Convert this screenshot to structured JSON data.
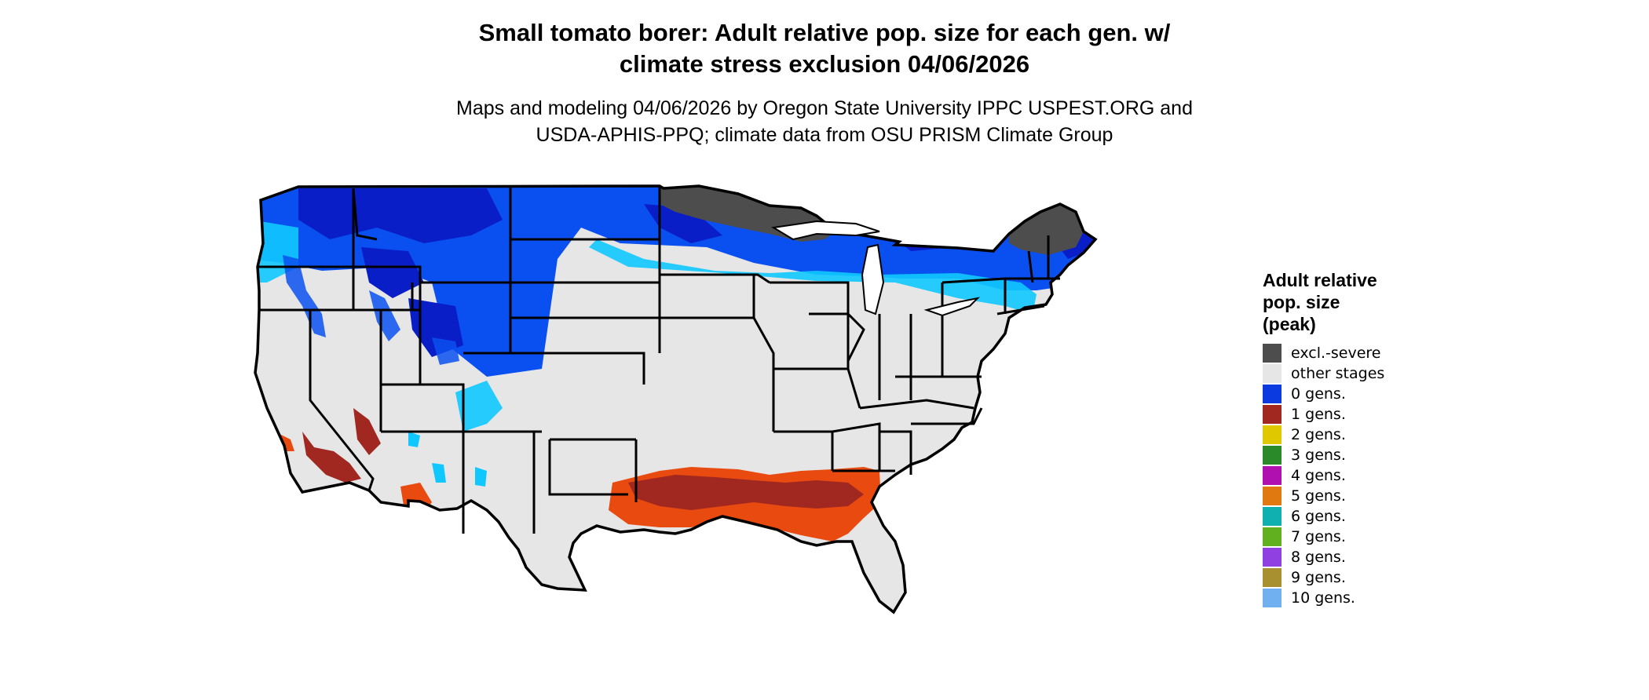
{
  "title": {
    "line1": "Small tomato borer: Adult relative pop. size for each gen. w/",
    "line2": "climate stress exclusion 04/06/2026"
  },
  "subtitle": {
    "line1": "Maps and modeling 04/06/2026 by Oregon State University IPPC USPEST.ORG and",
    "line2": "USDA-APHIS-PPQ; climate data from OSU PRISM Climate Group"
  },
  "legend": {
    "title_lines": [
      "Adult relative",
      "pop. size",
      "(peak)"
    ],
    "items": [
      {
        "label": "excl.-severe",
        "color": "#4d4d4d"
      },
      {
        "label": "other stages",
        "color": "#e6e6e6"
      },
      {
        "label": "0 gens.",
        "color": "#0a3ae0"
      },
      {
        "label": "1 gens.",
        "color": "#a02820"
      },
      {
        "label": "2 gens.",
        "color": "#e0c800"
      },
      {
        "label": "3 gens.",
        "color": "#2a8a2a"
      },
      {
        "label": "4 gens.",
        "color": "#b010b0"
      },
      {
        "label": "5 gens.",
        "color": "#e07a10"
      },
      {
        "label": "6 gens.",
        "color": "#10b0b0"
      },
      {
        "label": "7 gens.",
        "color": "#60b020"
      },
      {
        "label": "8 gens.",
        "color": "#9040e0"
      },
      {
        "label": "9 gens.",
        "color": "#a89030"
      },
      {
        "label": "10 gens.",
        "color": "#70b0f0"
      }
    ]
  },
  "map_colors": {
    "background_land": "#e6e6e6",
    "excluded": "#4d4d4d",
    "blue_dark": "#0a1ec8",
    "blue_mid": "#0a50f0",
    "blue_light": "#4aa0ff",
    "cyan": "#10c8ff",
    "red_dark": "#a02820",
    "red_orange": "#e84a10",
    "border": "#000000"
  }
}
